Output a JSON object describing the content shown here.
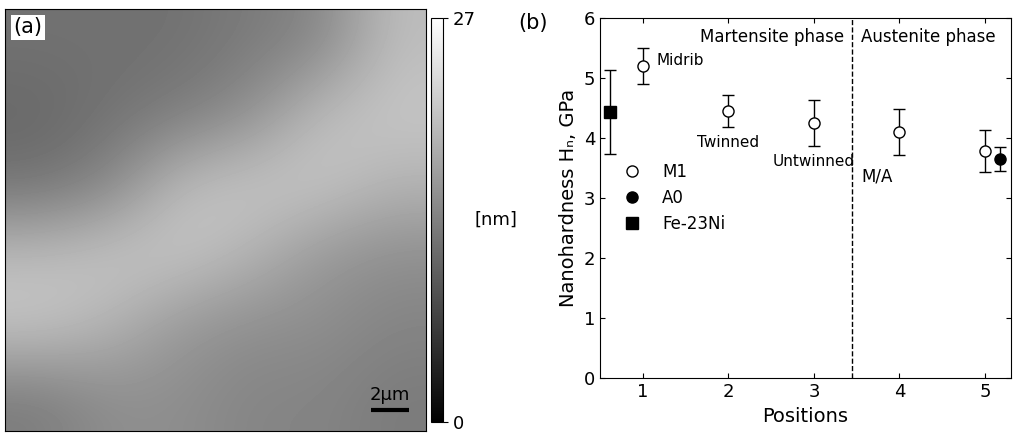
{
  "chart_data": [
    {
      "type": "image",
      "panel_label": "(a)",
      "colorbar": {
        "label": "[nm]",
        "range": [
          0,
          27
        ],
        "ticks": [
          0,
          27
        ]
      },
      "width_um": 22,
      "height_um": 22,
      "scale_bar": {
        "length": 2,
        "label": "2μm"
      },
      "cells": [
        [
          12,
          12,
          12,
          13,
          14,
          20
        ],
        [
          11,
          12,
          13,
          15,
          20,
          21
        ],
        [
          12,
          14,
          20,
          21,
          21,
          19
        ],
        [
          20,
          21,
          21,
          19,
          16,
          15
        ],
        [
          21,
          19,
          16,
          15,
          15,
          14
        ],
        [
          13,
          15,
          15,
          14,
          14,
          13
        ]
      ]
    },
    {
      "type": "scatter",
      "panel_label": "(b)",
      "x_label": "Positions",
      "y_label": "Nanohardness Hₙ, GPa",
      "xlim": [
        0.5,
        5.3
      ],
      "xticks": [
        1,
        2,
        3,
        4,
        5
      ],
      "ylim": [
        0,
        6
      ],
      "yticks": [
        0,
        1,
        2,
        3,
        4,
        5,
        6
      ],
      "legend": "center left",
      "boundary": {
        "x": 3.45,
        "label": "M/A",
        "label_y": 3.5
      },
      "regions": [
        {
          "label": "Martensite phase",
          "side": "left"
        },
        {
          "label": "Austenite phase",
          "side": "right"
        }
      ],
      "series": [
        {
          "name": "M1",
          "color": "#000000",
          "marker": "open_circle",
          "x": [
            1,
            2,
            3,
            4,
            5
          ],
          "values": [
            5.2,
            4.45,
            4.25,
            4.1,
            3.78
          ],
          "errors": [
            0.3,
            0.27,
            0.38,
            0.38,
            0.35
          ],
          "point_labels": [
            "Midrib",
            "Twinned",
            "Untwinned",
            null,
            null
          ]
        },
        {
          "name": "A0",
          "color": "#000000",
          "marker": "filled_circle",
          "x": [
            5.18
          ],
          "values": [
            3.65
          ],
          "errors": [
            0.2
          ]
        },
        {
          "name": "Fe-23Ni",
          "color": "#000000",
          "marker": "square",
          "x": [
            0.62
          ],
          "values": [
            4.43
          ],
          "errors": [
            0.7
          ]
        }
      ]
    }
  ]
}
